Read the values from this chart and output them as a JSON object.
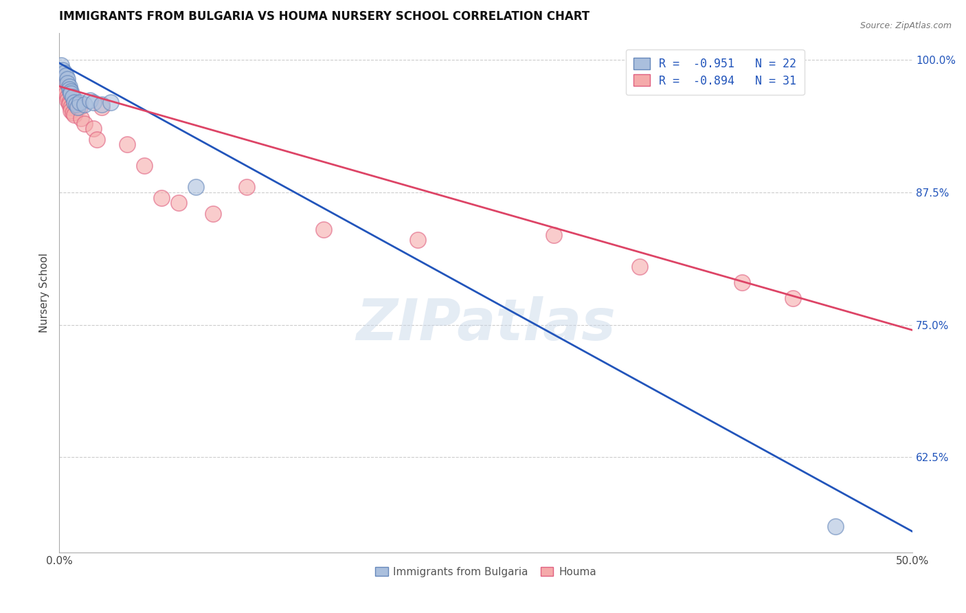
{
  "title": "IMMIGRANTS FROM BULGARIA VS HOUMA NURSERY SCHOOL CORRELATION CHART",
  "source": "Source: ZipAtlas.com",
  "xlabel_bottom": [
    "Immigrants from Bulgaria",
    "Houma"
  ],
  "ylabel": "Nursery School",
  "xlim": [
    0.0,
    0.5
  ],
  "ylim": [
    0.535,
    1.025
  ],
  "xticks": [
    0.0,
    0.05,
    0.1,
    0.15,
    0.2,
    0.25,
    0.3,
    0.35,
    0.4,
    0.45,
    0.5
  ],
  "xticklabels": [
    "0.0%",
    "",
    "",
    "",
    "",
    "",
    "",
    "",
    "",
    "",
    "50.0%"
  ],
  "yticks": [
    0.625,
    0.75,
    0.875,
    1.0
  ],
  "yticklabels": [
    "62.5%",
    "75.0%",
    "87.5%",
    "100.0%"
  ],
  "grid_color": "#cccccc",
  "background_color": "#ffffff",
  "blue_color": "#aabfdd",
  "pink_color": "#f5aaaa",
  "blue_edge_color": "#6688bb",
  "pink_edge_color": "#e06080",
  "blue_line_color": "#2255bb",
  "pink_line_color": "#dd4466",
  "legend_label_blue": "R =  -0.951   N = 22",
  "legend_label_pink": "R =  -0.894   N = 31",
  "watermark": "ZIPatlas",
  "blue_scatter": [
    [
      0.001,
      0.995
    ],
    [
      0.002,
      0.99
    ],
    [
      0.003,
      0.988
    ],
    [
      0.004,
      0.985
    ],
    [
      0.005,
      0.982
    ],
    [
      0.005,
      0.978
    ],
    [
      0.006,
      0.975
    ],
    [
      0.006,
      0.972
    ],
    [
      0.007,
      0.97
    ],
    [
      0.007,
      0.968
    ],
    [
      0.008,
      0.965
    ],
    [
      0.009,
      0.96
    ],
    [
      0.01,
      0.958
    ],
    [
      0.011,
      0.955
    ],
    [
      0.012,
      0.96
    ],
    [
      0.015,
      0.958
    ],
    [
      0.018,
      0.962
    ],
    [
      0.02,
      0.96
    ],
    [
      0.025,
      0.958
    ],
    [
      0.03,
      0.96
    ],
    [
      0.08,
      0.88
    ],
    [
      0.455,
      0.56
    ]
  ],
  "pink_scatter": [
    [
      0.001,
      0.98
    ],
    [
      0.002,
      0.975
    ],
    [
      0.003,
      0.97
    ],
    [
      0.004,
      0.968
    ],
    [
      0.005,
      0.965
    ],
    [
      0.005,
      0.962
    ],
    [
      0.006,
      0.96
    ],
    [
      0.006,
      0.958
    ],
    [
      0.007,
      0.955
    ],
    [
      0.007,
      0.952
    ],
    [
      0.008,
      0.95
    ],
    [
      0.009,
      0.948
    ],
    [
      0.01,
      0.96
    ],
    [
      0.012,
      0.955
    ],
    [
      0.013,
      0.945
    ],
    [
      0.015,
      0.94
    ],
    [
      0.02,
      0.935
    ],
    [
      0.022,
      0.925
    ],
    [
      0.025,
      0.955
    ],
    [
      0.04,
      0.92
    ],
    [
      0.05,
      0.9
    ],
    [
      0.06,
      0.87
    ],
    [
      0.07,
      0.865
    ],
    [
      0.09,
      0.855
    ],
    [
      0.11,
      0.88
    ],
    [
      0.155,
      0.84
    ],
    [
      0.21,
      0.83
    ],
    [
      0.29,
      0.835
    ],
    [
      0.34,
      0.805
    ],
    [
      0.4,
      0.79
    ],
    [
      0.43,
      0.775
    ]
  ],
  "blue_line": [
    [
      0.0,
      0.997
    ],
    [
      0.5,
      0.555
    ]
  ],
  "pink_line": [
    [
      0.0,
      0.975
    ],
    [
      0.5,
      0.745
    ]
  ]
}
